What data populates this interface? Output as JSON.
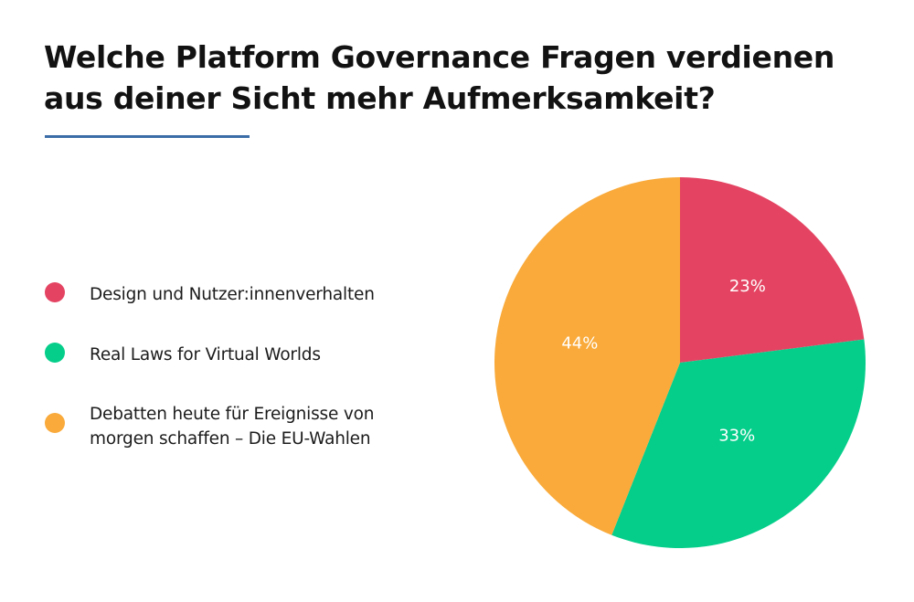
{
  "page": {
    "title_lines": [
      "Welche Platform Governance Fragen verdienen",
      "aus deiner Sicht mehr Aufmerksamkeit?"
    ],
    "accent_color": "#3b6ea8"
  },
  "legend": {
    "items": [
      {
        "label_lines": [
          "Design und Nutzer:innenverhalten"
        ],
        "color": "#E44462"
      },
      {
        "label_lines": [
          "Real Laws for Virtual Worlds"
        ],
        "color": "#05CE8A"
      },
      {
        "label_lines": [
          "Debatten heute für Ereignisse von",
          "morgen schaffen – Die EU-Wahlen"
        ],
        "color": "#F9AA3A"
      }
    ]
  },
  "chart_data": {
    "type": "pie",
    "title": "Welche Platform Governance Fragen verdienen aus deiner Sicht mehr Aufmerksamkeit?",
    "categories": [
      "Design und Nutzer:innenverhalten",
      "Real Laws for Virtual Worlds",
      "Debatten heute für Ereignisse von morgen schaffen – Die EU-Wahlen"
    ],
    "values": [
      23,
      33,
      44
    ],
    "unit": "%",
    "data_labels": [
      "23%",
      "33%",
      "44%"
    ],
    "colors": [
      "#E44462",
      "#05CE8A",
      "#F9AA3A"
    ],
    "start_angle": "12 o'clock",
    "direction": "clockwise",
    "legend_position": "left"
  }
}
